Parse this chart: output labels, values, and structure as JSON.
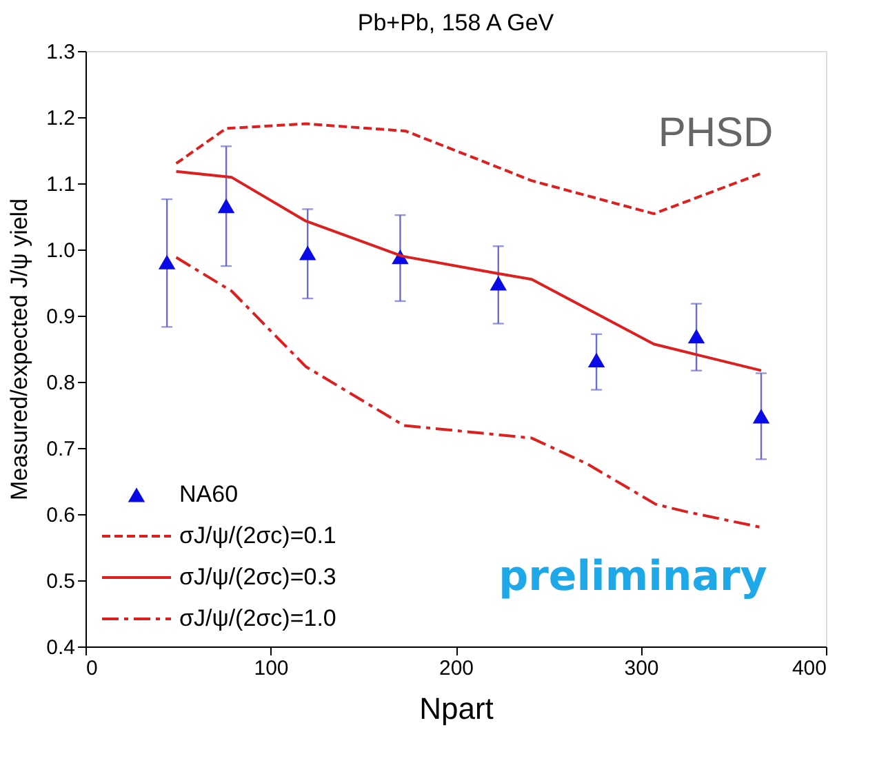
{
  "chart_data": {
    "type": "scatter",
    "title": "Pb+Pb, 158 A GeV",
    "xlabel": "Npart",
    "ylabel": "Measured/expected J/ψ yield",
    "xlim": [
      0,
      400
    ],
    "xticks": [
      0,
      100,
      200,
      300,
      400
    ],
    "ylim": [
      0.4,
      1.3
    ],
    "yticks": [
      0.4,
      0.5,
      0.6,
      0.7,
      0.8,
      0.9,
      {
        "value": 1.0,
        "label": "1.0"
      },
      1.1,
      1.2,
      1.3
    ],
    "grid": false,
    "legend": "bottom left",
    "annotations": [
      "PHSD",
      "preliminary"
    ],
    "series": [
      {
        "name": "NA60",
        "marker": "triangle",
        "color": "#0a0ae6",
        "x": [
          44,
          76,
          120,
          170,
          223,
          276,
          330,
          365
        ],
        "values": [
          0.981,
          1.066,
          0.995,
          0.989,
          0.949,
          0.833,
          0.869,
          0.748
        ],
        "errors": [
          [
            0.883,
            1.076
          ],
          [
            0.975,
            1.156
          ],
          [
            0.926,
            1.061
          ],
          [
            0.922,
            1.052
          ],
          [
            0.888,
            1.005
          ],
          [
            0.788,
            0.872
          ],
          [
            0.817,
            0.918
          ],
          [
            0.683,
            0.813
          ]
        ]
      },
      {
        "name": "σJ/ψ/(2σc)=0.1",
        "type": "line",
        "line_style": "dashed",
        "color": "#dc2020",
        "x": [
          49,
          76,
          119,
          173,
          214,
          241,
          307,
          365
        ],
        "values": [
          1.13,
          1.183,
          1.19,
          1.179,
          1.134,
          1.104,
          1.054,
          1.115
        ]
      },
      {
        "name": "σJ/ψ/(2σc)=0.3",
        "type": "line",
        "line_style": "solid",
        "color": "#dc2020",
        "x": [
          49,
          79,
          119,
          171,
          222,
          241,
          307,
          365
        ],
        "values": [
          1.118,
          1.109,
          1.043,
          0.99,
          0.964,
          0.955,
          0.857,
          0.817
        ]
      },
      {
        "name": "σJ/ψ/(2σc)=1.0",
        "type": "line",
        "line_style": "dashdot",
        "color": "#dc2020",
        "x": [
          49,
          79,
          119,
          172,
          241,
          271,
          308,
          324,
          365
        ],
        "values": [
          0.988,
          0.937,
          0.823,
          0.734,
          0.715,
          0.676,
          0.615,
          0.604,
          0.58
        ]
      }
    ]
  }
}
